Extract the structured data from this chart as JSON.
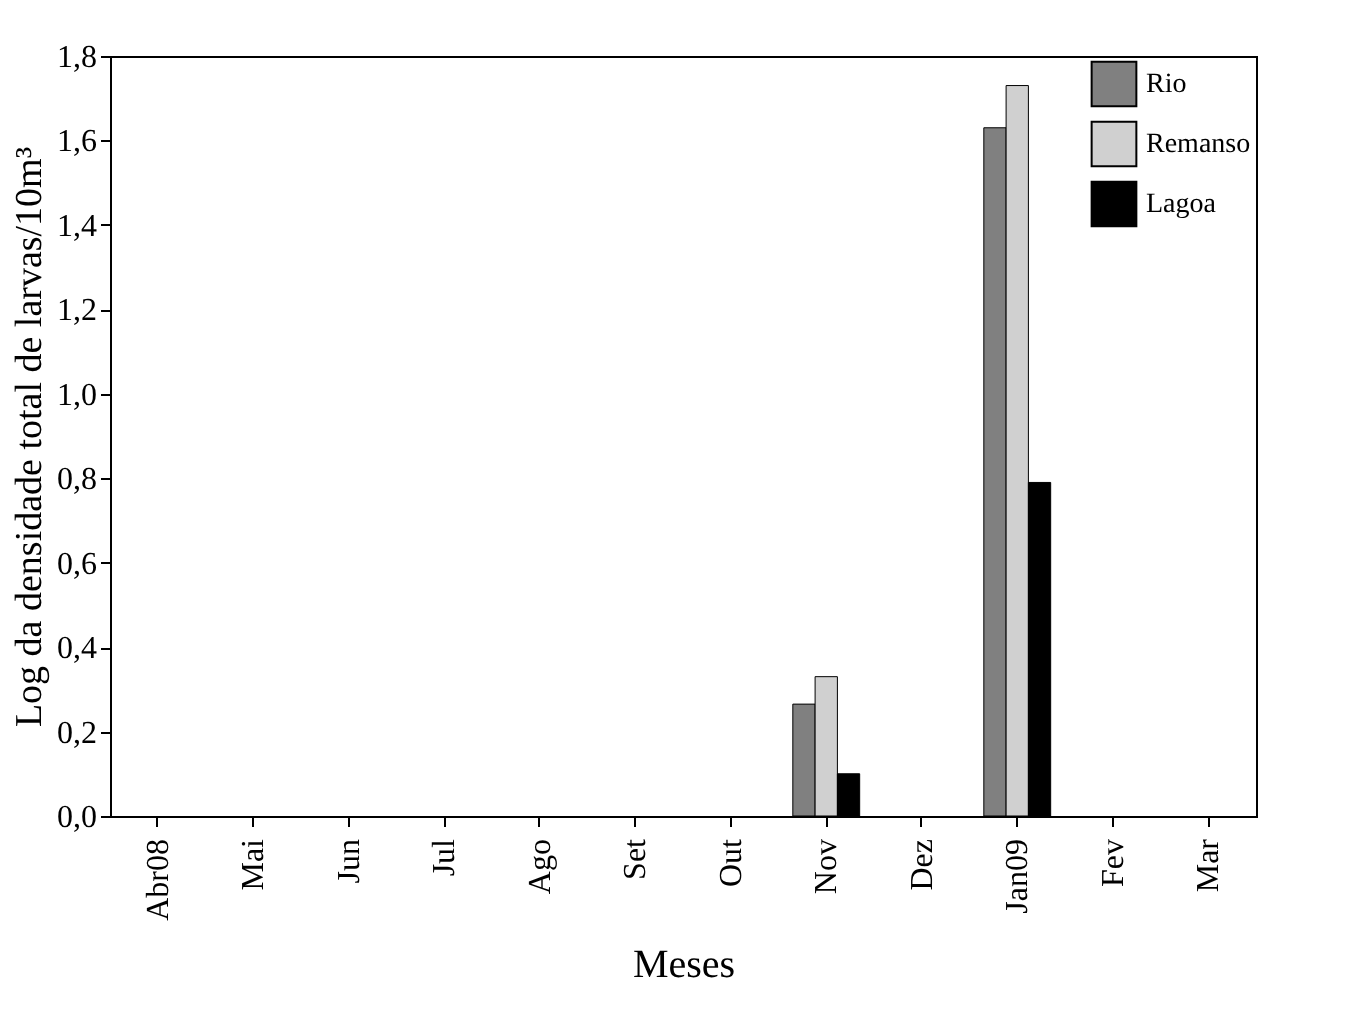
{
  "chart_data": {
    "type": "bar",
    "xlabel": "Meses",
    "ylabel": "Log da densidade total de larvas/10m³",
    "categories": [
      "Abr08",
      "Mai",
      "Jun",
      "Jul",
      "Ago",
      "Set",
      "Out",
      "Nov",
      "Dez",
      "Jan09",
      "Fev",
      "Mar"
    ],
    "series": [
      {
        "name": "Rio",
        "color": "#808080",
        "values": [
          null,
          null,
          null,
          null,
          null,
          null,
          null,
          0.265,
          null,
          1.63,
          null,
          null
        ]
      },
      {
        "name": "Remanso",
        "color": "#d0d0d0",
        "values": [
          null,
          null,
          null,
          null,
          null,
          null,
          null,
          0.33,
          null,
          1.73,
          null,
          null
        ]
      },
      {
        "name": "Lagoa",
        "color": "#000000",
        "values": [
          null,
          null,
          null,
          null,
          null,
          null,
          null,
          0.1,
          null,
          0.79,
          null,
          null
        ]
      }
    ],
    "ylim": [
      0,
      1.8
    ],
    "yticks": [
      {
        "value": 0,
        "label": "0,0"
      },
      {
        "value": 0.2,
        "label": "0,2"
      },
      {
        "value": 0.4,
        "label": "0,4"
      },
      {
        "value": 0.6,
        "label": "0,6"
      },
      {
        "value": 0.8,
        "label": "0,8"
      },
      {
        "value": 1.0,
        "label": "1,0"
      },
      {
        "value": 1.2,
        "label": "1,2"
      },
      {
        "value": 1.4,
        "label": "1,4"
      },
      {
        "value": 1.6,
        "label": "1,6"
      },
      {
        "value": 1.8,
        "label": "1,8"
      }
    ],
    "grid": false,
    "legend": "top right"
  }
}
